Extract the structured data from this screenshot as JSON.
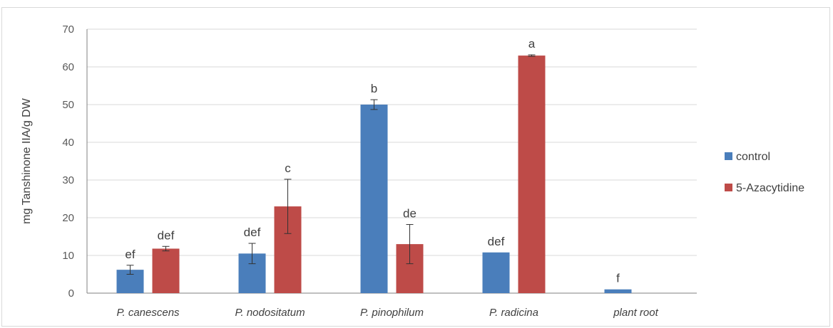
{
  "chart_data": {
    "type": "bar",
    "categories": [
      "P. canescens",
      "P. nodositatum",
      "P. pinophilum",
      "P. radicina",
      "plant root"
    ],
    "series": [
      {
        "name": "control",
        "color": "#4a7ebb",
        "values": [
          6.2,
          10.5,
          50.0,
          10.8,
          1.0
        ],
        "errors": [
          1.2,
          2.7,
          1.3,
          0.0,
          0.0
        ],
        "labels": [
          "ef",
          "def",
          "b",
          "def",
          "f"
        ]
      },
      {
        "name": "5-Azacytidine",
        "color": "#be4b48",
        "values": [
          11.8,
          23.0,
          13.0,
          63.0,
          null
        ],
        "errors": [
          0.6,
          7.2,
          5.2,
          0.2,
          null
        ],
        "labels": [
          "def",
          "c",
          "de",
          "a",
          null
        ]
      }
    ],
    "ylabel": "mg Tanshinone IIA/g DW",
    "xlabel": "",
    "ylim": [
      0,
      70
    ],
    "yticks": [
      0,
      10,
      20,
      30,
      40,
      50,
      60,
      70
    ],
    "grid": true,
    "legend_position": "right",
    "gridline_color": "#d9d9d9",
    "axis_color": "#808080",
    "errorbar_color": "#333333"
  }
}
